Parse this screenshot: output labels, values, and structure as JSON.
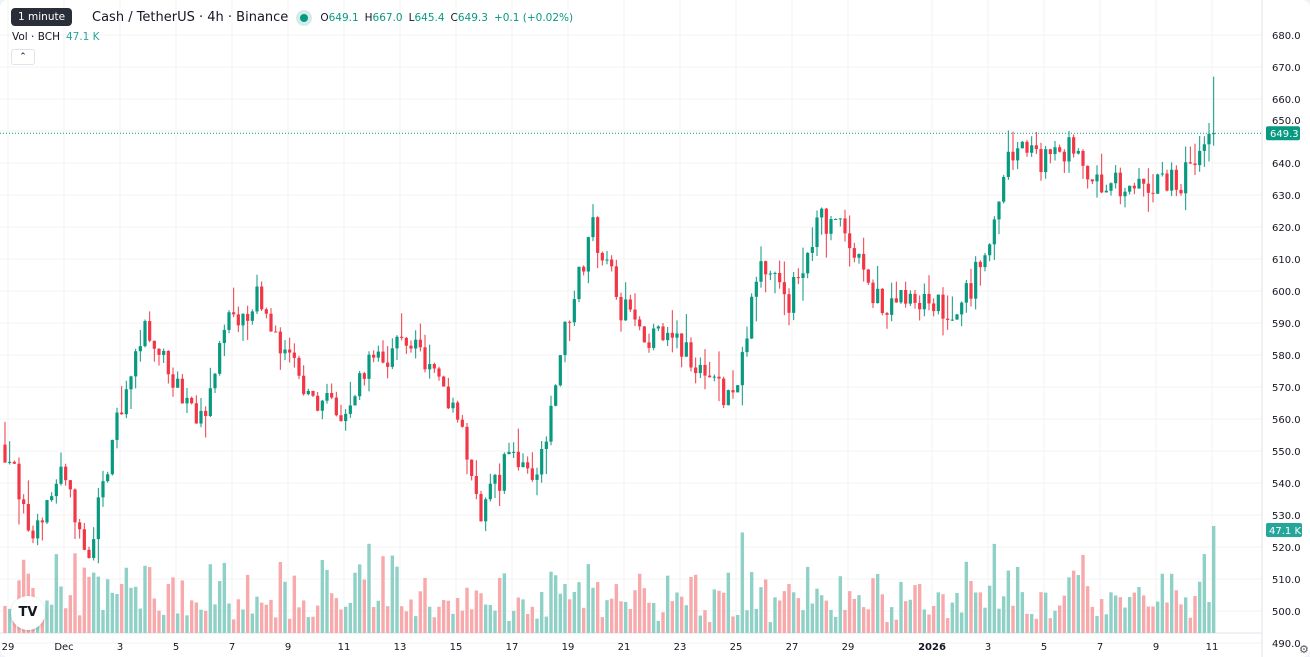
{
  "header": {
    "tooltip": "1 minute",
    "title": "Cash / TetherUS · 4h · Binance",
    "open_label": "O",
    "open": "649.1",
    "high_label": "H",
    "high": "667.0",
    "low_label": "L",
    "low": "645.4",
    "close_label": "C",
    "close": "649.3",
    "change": "+0.1 (+0.02%)",
    "volume_label": "Vol · BCH",
    "volume_value": "47.1 K",
    "collapse_icon": "chevron-up-icon",
    "logo": "TV"
  },
  "colors": {
    "up": "#089981",
    "down": "#f23645",
    "vol_up": "#8fd1c6",
    "vol_down": "#f7a9ab"
  },
  "chart_data": {
    "type": "candlestick",
    "interval": "4h",
    "price_axis": {
      "min": 490,
      "max": 680,
      "ticks": [
        "680.0",
        "670.0",
        "660.0",
        "650.0",
        "640.0",
        "630.0",
        "620.0",
        "610.0",
        "600.0",
        "590.0",
        "580.0",
        "570.0",
        "560.0",
        "550.0",
        "540.0",
        "530.0",
        "520.0",
        "510.0",
        "500.0",
        "490.0"
      ]
    },
    "last_price_label": "649.3",
    "last_volume_label": "47.1 K",
    "x_ticks": [
      {
        "label": "29",
        "date": "2025-11-29"
      },
      {
        "label": "Dec",
        "date": "2025-12-01"
      },
      {
        "label": "3",
        "date": "2025-12-03"
      },
      {
        "label": "5",
        "date": "2025-12-05"
      },
      {
        "label": "7",
        "date": "2025-12-07"
      },
      {
        "label": "9",
        "date": "2025-12-09"
      },
      {
        "label": "11",
        "date": "2025-12-11"
      },
      {
        "label": "13",
        "date": "2025-12-13"
      },
      {
        "label": "15",
        "date": "2025-12-15"
      },
      {
        "label": "17",
        "date": "2025-12-17"
      },
      {
        "label": "19",
        "date": "2025-12-19"
      },
      {
        "label": "21",
        "date": "2025-12-21"
      },
      {
        "label": "23",
        "date": "2025-12-23"
      },
      {
        "label": "25",
        "date": "2025-12-25"
      },
      {
        "label": "27",
        "date": "2025-12-27"
      },
      {
        "label": "29",
        "date": "2025-12-29"
      },
      {
        "label": "2026",
        "date": "2026-01-01"
      },
      {
        "label": "3",
        "date": "2026-01-03"
      },
      {
        "label": "5",
        "date": "2026-01-05"
      },
      {
        "label": "7",
        "date": "2026-01-07"
      },
      {
        "label": "9",
        "date": "2026-01-09"
      },
      {
        "label": "11",
        "date": "2026-01-11"
      }
    ],
    "daily_closes": [
      550,
      525,
      545,
      518,
      560,
      590,
      574,
      560,
      590,
      597,
      580,
      568,
      560,
      578,
      582,
      580,
      565,
      530,
      548,
      540,
      587,
      620,
      595,
      585,
      585,
      570,
      568,
      608,
      597,
      622,
      620,
      597,
      597,
      598,
      592,
      612,
      645,
      640,
      645,
      635,
      632,
      633,
      634,
      645
    ],
    "last_close": 649.3,
    "last_candle": {
      "open": 649.1,
      "high": 667.0,
      "low": 645.4,
      "close": 649.3,
      "volume_k": 47.1
    },
    "grid": true
  }
}
